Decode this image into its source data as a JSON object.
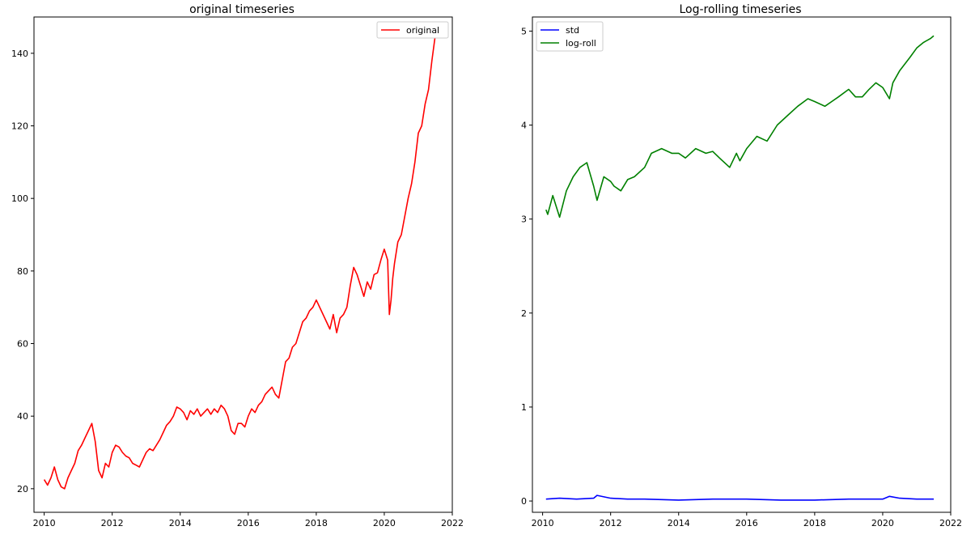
{
  "chart_data": [
    {
      "type": "line",
      "title": "original timeseries",
      "xlabel": "",
      "ylabel": "",
      "xlim": [
        2009.7,
        2022.0
      ],
      "ylim": [
        13.5,
        150.0
      ],
      "xticks": [
        2010,
        2012,
        2014,
        2016,
        2018,
        2020,
        2022
      ],
      "yticks": [
        20,
        40,
        60,
        80,
        100,
        120,
        140
      ],
      "grid": false,
      "legend": "top-right",
      "series": [
        {
          "name": "original",
          "color": "#ff0000",
          "x": [
            2010.0,
            2010.1,
            2010.2,
            2010.3,
            2010.4,
            2010.5,
            2010.6,
            2010.7,
            2010.8,
            2010.9,
            2011.0,
            2011.1,
            2011.2,
            2011.3,
            2011.4,
            2011.5,
            2011.6,
            2011.7,
            2011.8,
            2011.9,
            2012.0,
            2012.1,
            2012.2,
            2012.3,
            2012.4,
            2012.5,
            2012.6,
            2012.7,
            2012.8,
            2012.9,
            2013.0,
            2013.1,
            2013.2,
            2013.3,
            2013.4,
            2013.5,
            2013.6,
            2013.7,
            2013.8,
            2013.9,
            2014.0,
            2014.1,
            2014.2,
            2014.3,
            2014.4,
            2014.5,
            2014.6,
            2014.7,
            2014.8,
            2014.9,
            2015.0,
            2015.1,
            2015.2,
            2015.3,
            2015.4,
            2015.5,
            2015.6,
            2015.7,
            2015.8,
            2015.9,
            2016.0,
            2016.1,
            2016.2,
            2016.3,
            2016.4,
            2016.5,
            2016.6,
            2016.7,
            2016.8,
            2016.9,
            2017.0,
            2017.1,
            2017.2,
            2017.3,
            2017.4,
            2017.5,
            2017.6,
            2017.7,
            2017.8,
            2017.9,
            2018.0,
            2018.1,
            2018.2,
            2018.3,
            2018.4,
            2018.5,
            2018.6,
            2018.7,
            2018.8,
            2018.9,
            2019.0,
            2019.1,
            2019.2,
            2019.3,
            2019.4,
            2019.5,
            2019.6,
            2019.7,
            2019.8,
            2019.9,
            2020.0,
            2020.1,
            2020.15,
            2020.2,
            2020.25,
            2020.3,
            2020.4,
            2020.5,
            2020.6,
            2020.7,
            2020.8,
            2020.9,
            2021.0,
            2021.1,
            2021.2,
            2021.3,
            2021.4,
            2021.5
          ],
          "values": [
            22.5,
            21.0,
            23.0,
            26.0,
            22.5,
            20.5,
            20.0,
            23.0,
            25.0,
            27.0,
            30.5,
            32.0,
            34.0,
            36.0,
            38.0,
            33.0,
            25.0,
            23.0,
            27.0,
            26.0,
            30.0,
            32.0,
            31.5,
            30.0,
            29.0,
            28.5,
            27.0,
            26.5,
            26.0,
            28.0,
            30.0,
            31.0,
            30.5,
            32.0,
            33.5,
            35.5,
            37.5,
            38.5,
            40.0,
            42.5,
            42.0,
            41.0,
            39.0,
            41.5,
            40.5,
            42.0,
            40.0,
            41.0,
            42.0,
            40.5,
            42.0,
            41.0,
            43.0,
            42.0,
            40.0,
            36.0,
            35.0,
            38.0,
            38.0,
            37.0,
            40.0,
            42.0,
            41.0,
            43.0,
            44.0,
            46.0,
            47.0,
            48.0,
            46.0,
            45.0,
            50.0,
            55.0,
            56.0,
            59.0,
            60.0,
            63.0,
            66.0,
            67.0,
            69.0,
            70.0,
            72.0,
            70.0,
            68.0,
            66.0,
            64.0,
            68.0,
            63.0,
            67.0,
            68.0,
            70.0,
            76.0,
            81.0,
            79.0,
            76.0,
            73.0,
            77.0,
            75.0,
            79.0,
            79.5,
            83.0,
            86.0,
            83.0,
            68.0,
            72.0,
            78.0,
            82.0,
            88.0,
            90.0,
            95.0,
            100.0,
            104.0,
            110.0,
            118.0,
            120.0,
            126.0,
            130.0,
            138.0,
            145.0
          ]
        }
      ]
    },
    {
      "type": "line",
      "title": "Log-rolling timeseries",
      "xlabel": "",
      "ylabel": "",
      "xlim": [
        2009.7,
        2022.0
      ],
      "ylim": [
        -0.12,
        5.15
      ],
      "xticks": [
        2010,
        2012,
        2014,
        2016,
        2018,
        2020,
        2022
      ],
      "yticks": [
        0,
        1,
        2,
        3,
        4,
        5
      ],
      "grid": false,
      "legend": "top-left",
      "series": [
        {
          "name": "std",
          "color": "#0000ff",
          "x": [
            2010.1,
            2010.5,
            2011.0,
            2011.5,
            2011.6,
            2012.0,
            2012.5,
            2013.0,
            2014.0,
            2015.0,
            2016.0,
            2017.0,
            2018.0,
            2019.0,
            2019.5,
            2020.0,
            2020.2,
            2020.5,
            2021.0,
            2021.5
          ],
          "values": [
            0.02,
            0.03,
            0.02,
            0.03,
            0.06,
            0.03,
            0.02,
            0.02,
            0.01,
            0.02,
            0.02,
            0.01,
            0.01,
            0.02,
            0.02,
            0.02,
            0.05,
            0.03,
            0.02,
            0.02
          ]
        },
        {
          "name": "log-roll",
          "color": "#008000",
          "x": [
            2010.1,
            2010.15,
            2010.3,
            2010.5,
            2010.7,
            2010.9,
            2011.1,
            2011.3,
            2011.5,
            2011.6,
            2011.8,
            2012.0,
            2012.1,
            2012.3,
            2012.5,
            2012.7,
            2013.0,
            2013.2,
            2013.5,
            2013.8,
            2014.0,
            2014.2,
            2014.5,
            2014.8,
            2015.0,
            2015.2,
            2015.5,
            2015.7,
            2015.8,
            2016.0,
            2016.3,
            2016.6,
            2016.9,
            2017.2,
            2017.5,
            2017.8,
            2018.0,
            2018.3,
            2018.5,
            2018.7,
            2019.0,
            2019.2,
            2019.4,
            2019.6,
            2019.8,
            2020.0,
            2020.2,
            2020.3,
            2020.5,
            2020.8,
            2021.0,
            2021.2,
            2021.4,
            2021.5
          ],
          "values": [
            3.1,
            3.05,
            3.25,
            3.02,
            3.3,
            3.45,
            3.55,
            3.6,
            3.35,
            3.2,
            3.45,
            3.4,
            3.35,
            3.3,
            3.42,
            3.45,
            3.55,
            3.7,
            3.75,
            3.7,
            3.7,
            3.65,
            3.75,
            3.7,
            3.72,
            3.65,
            3.55,
            3.7,
            3.62,
            3.75,
            3.88,
            3.83,
            4.0,
            4.1,
            4.2,
            4.28,
            4.25,
            4.2,
            4.25,
            4.3,
            4.38,
            4.3,
            4.3,
            4.38,
            4.45,
            4.4,
            4.28,
            4.45,
            4.58,
            4.72,
            4.82,
            4.88,
            4.92,
            4.95
          ]
        }
      ]
    }
  ]
}
